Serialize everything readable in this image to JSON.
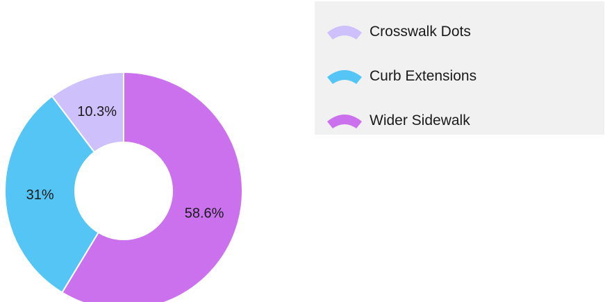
{
  "chart_data": {
    "type": "pie",
    "variant": "donut",
    "categories": [
      "Crosswalk Dots",
      "Curb Extensions",
      "Wider Sidewalk"
    ],
    "values": [
      10.3,
      31,
      58.6
    ],
    "labels": [
      "10.3%",
      "31%",
      "58.6%"
    ],
    "colors": [
      "#cdc0fb",
      "#55c5f5",
      "#cb71ee"
    ],
    "legend_position": "top-right",
    "start": "top",
    "direction": "counterclockwise"
  },
  "legend": {
    "items": [
      {
        "label": "Crosswalk Dots",
        "color": "#cdc0fb",
        "icon": "fan-swatch-icon"
      },
      {
        "label": "Curb Extensions",
        "color": "#55c5f5",
        "icon": "fan-swatch-icon"
      },
      {
        "label": "Wider Sidewalk",
        "color": "#cb71ee",
        "icon": "fan-swatch-icon"
      }
    ]
  }
}
